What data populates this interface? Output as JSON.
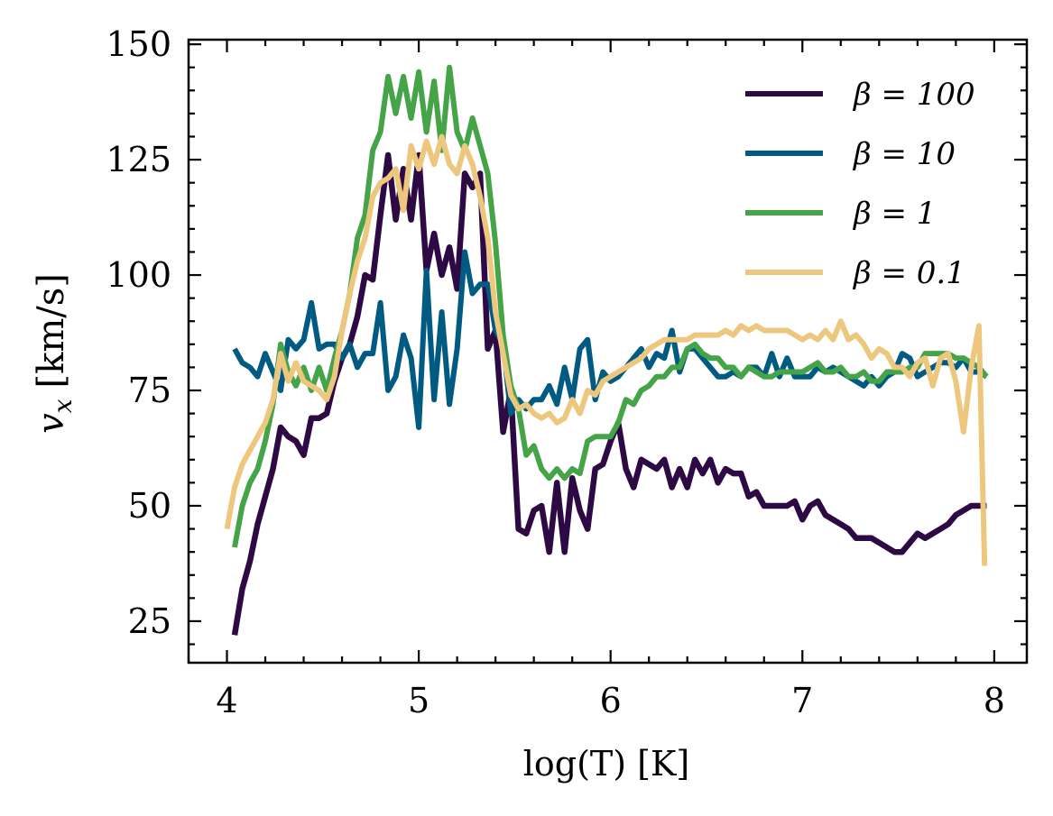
{
  "chart_data": {
    "type": "line",
    "title": "",
    "xlabel": "log(T) [K]",
    "ylabel_var": "v",
    "ylabel_sub": "x",
    "ylabel_unit": "[km/s]",
    "xlim": [
      3.8,
      8.17
    ],
    "ylim": [
      16,
      151
    ],
    "xticks": [
      4,
      5,
      6,
      7,
      8
    ],
    "yticks": [
      25,
      50,
      75,
      100,
      125,
      150
    ],
    "legend_position": "top-right",
    "series": [
      {
        "name": "β = 100",
        "color": "#2d0a44",
        "x": [
          4.04,
          4.08,
          4.12,
          4.16,
          4.2,
          4.24,
          4.28,
          4.32,
          4.36,
          4.4,
          4.44,
          4.48,
          4.52,
          4.56,
          4.6,
          4.64,
          4.68,
          4.72,
          4.76,
          4.8,
          4.84,
          4.88,
          4.92,
          4.96,
          5.0,
          5.04,
          5.08,
          5.12,
          5.16,
          5.2,
          5.24,
          5.28,
          5.32,
          5.36,
          5.4,
          5.44,
          5.48,
          5.52,
          5.56,
          5.6,
          5.64,
          5.68,
          5.72,
          5.76,
          5.8,
          5.84,
          5.88,
          5.92,
          5.96,
          6.0,
          6.04,
          6.08,
          6.12,
          6.16,
          6.2,
          6.24,
          6.28,
          6.32,
          6.36,
          6.4,
          6.44,
          6.48,
          6.52,
          6.56,
          6.6,
          6.64,
          6.68,
          6.72,
          6.76,
          6.8,
          6.84,
          6.88,
          6.92,
          6.96,
          7.0,
          7.04,
          7.08,
          7.12,
          7.16,
          7.2,
          7.24,
          7.28,
          7.32,
          7.36,
          7.4,
          7.44,
          7.48,
          7.52,
          7.56,
          7.6,
          7.64,
          7.68,
          7.72,
          7.76,
          7.8,
          7.84,
          7.88,
          7.92,
          7.96
        ],
        "y": [
          22,
          32,
          38,
          46,
          52,
          58,
          67,
          65,
          64,
          61,
          69,
          69,
          70,
          77,
          82,
          85,
          91,
          100,
          99,
          113,
          126,
          112,
          123,
          112,
          126,
          101,
          109,
          100,
          106,
          97,
          122,
          119,
          122,
          84,
          88,
          66,
          75,
          45,
          44,
          49,
          50,
          40,
          55,
          40,
          56,
          49,
          45,
          58,
          59,
          64,
          68,
          58,
          54,
          60,
          59,
          58,
          60,
          54,
          58,
          54,
          60,
          57,
          60,
          55,
          58,
          57,
          57,
          52,
          53,
          50,
          50,
          50,
          50,
          51,
          47,
          50,
          51,
          48,
          47,
          46,
          45,
          43,
          43,
          43,
          42,
          41,
          40,
          40,
          42,
          44,
          43,
          44,
          45,
          46,
          48,
          49,
          50,
          50,
          50
        ],
        "width": 6.5
      },
      {
        "name": "β = 10",
        "color": "#005a81",
        "x": [
          4.04,
          4.08,
          4.12,
          4.16,
          4.2,
          4.24,
          4.28,
          4.32,
          4.36,
          4.4,
          4.44,
          4.48,
          4.52,
          4.56,
          4.6,
          4.64,
          4.68,
          4.72,
          4.76,
          4.8,
          4.84,
          4.88,
          4.92,
          4.96,
          5.0,
          5.04,
          5.08,
          5.12,
          5.16,
          5.2,
          5.24,
          5.28,
          5.32,
          5.36,
          5.4,
          5.44,
          5.48,
          5.52,
          5.56,
          5.6,
          5.64,
          5.68,
          5.72,
          5.76,
          5.8,
          5.84,
          5.88,
          5.92,
          5.96,
          6.0,
          6.04,
          6.08,
          6.12,
          6.16,
          6.2,
          6.24,
          6.28,
          6.32,
          6.36,
          6.4,
          6.44,
          6.48,
          6.52,
          6.56,
          6.6,
          6.64,
          6.68,
          6.72,
          6.76,
          6.8,
          6.84,
          6.88,
          6.92,
          6.96,
          7.0,
          7.04,
          7.08,
          7.12,
          7.16,
          7.2,
          7.24,
          7.28,
          7.32,
          7.36,
          7.4,
          7.44,
          7.48,
          7.52,
          7.56,
          7.6,
          7.64,
          7.68,
          7.72,
          7.76,
          7.8,
          7.84,
          7.88,
          7.92,
          7.96
        ],
        "y": [
          84,
          81,
          80,
          78,
          83,
          79,
          75,
          86,
          84,
          86,
          94,
          84,
          85,
          85,
          82,
          85,
          80,
          83,
          83,
          94,
          75,
          78,
          87,
          82,
          67,
          101,
          73,
          92,
          72,
          84,
          105,
          96,
          98,
          98,
          88,
          85,
          70,
          73,
          71,
          73,
          73,
          76,
          72,
          80,
          73,
          84,
          86,
          73,
          79,
          77,
          78,
          80,
          82,
          84,
          80,
          83,
          82,
          88,
          79,
          84,
          84,
          82,
          80,
          78,
          78,
          79,
          78,
          80,
          80,
          78,
          83,
          78,
          82,
          78,
          78,
          78,
          80,
          79,
          80,
          79,
          78,
          77,
          76,
          78,
          76,
          78,
          79,
          83,
          82,
          78,
          79,
          80,
          81,
          81,
          80,
          82,
          79,
          79,
          78
        ],
        "width": 6
      },
      {
        "name": "β = 1",
        "color": "#45a348",
        "x": [
          4.04,
          4.08,
          4.12,
          4.16,
          4.2,
          4.24,
          4.28,
          4.32,
          4.36,
          4.4,
          4.44,
          4.48,
          4.52,
          4.56,
          4.6,
          4.64,
          4.68,
          4.72,
          4.76,
          4.8,
          4.84,
          4.88,
          4.92,
          4.96,
          5.0,
          5.04,
          5.08,
          5.12,
          5.16,
          5.2,
          5.24,
          5.28,
          5.32,
          5.36,
          5.4,
          5.44,
          5.48,
          5.52,
          5.56,
          5.6,
          5.64,
          5.68,
          5.72,
          5.76,
          5.8,
          5.84,
          5.88,
          5.92,
          5.96,
          6.0,
          6.04,
          6.08,
          6.12,
          6.16,
          6.2,
          6.24,
          6.28,
          6.32,
          6.36,
          6.4,
          6.44,
          6.48,
          6.52,
          6.56,
          6.6,
          6.64,
          6.68,
          6.72,
          6.76,
          6.8,
          6.84,
          6.88,
          6.92,
          6.96,
          7.0,
          7.04,
          7.08,
          7.12,
          7.16,
          7.2,
          7.24,
          7.28,
          7.32,
          7.36,
          7.4,
          7.44,
          7.48,
          7.52,
          7.56,
          7.6,
          7.64,
          7.68,
          7.72,
          7.76,
          7.8,
          7.84,
          7.88,
          7.92,
          7.96
        ],
        "y": [
          41,
          50,
          55,
          58,
          64,
          72,
          85,
          79,
          76,
          80,
          75,
          80,
          75,
          82,
          88,
          96,
          108,
          113,
          127,
          131,
          143,
          135,
          143,
          134,
          144,
          131,
          142,
          127,
          145,
          131,
          127,
          134,
          128,
          122,
          107,
          87,
          76,
          71,
          61,
          63,
          58,
          56,
          58,
          56,
          58,
          57,
          64,
          65,
          65,
          65,
          68,
          73,
          72,
          75,
          76,
          78,
          78,
          80,
          80,
          84,
          85,
          83,
          82,
          82,
          80,
          80,
          78,
          80,
          79,
          78,
          78,
          79,
          79,
          79,
          79,
          80,
          81,
          79,
          79,
          80,
          78,
          78,
          79,
          77,
          77,
          79,
          79,
          79,
          80,
          80,
          83,
          83,
          83,
          83,
          82,
          82,
          81,
          80,
          78
        ],
        "width": 6
      },
      {
        "name": "β = 0.1",
        "color": "#eec77f",
        "x": [
          4.0,
          4.04,
          4.08,
          4.12,
          4.16,
          4.2,
          4.24,
          4.28,
          4.32,
          4.36,
          4.4,
          4.44,
          4.48,
          4.52,
          4.56,
          4.6,
          4.64,
          4.68,
          4.72,
          4.76,
          4.8,
          4.84,
          4.88,
          4.92,
          4.96,
          5.0,
          5.04,
          5.08,
          5.12,
          5.16,
          5.2,
          5.24,
          5.28,
          5.32,
          5.36,
          5.4,
          5.44,
          5.48,
          5.52,
          5.56,
          5.6,
          5.64,
          5.68,
          5.72,
          5.76,
          5.8,
          5.84,
          5.88,
          5.92,
          5.96,
          6.0,
          6.04,
          6.08,
          6.12,
          6.16,
          6.2,
          6.24,
          6.28,
          6.32,
          6.36,
          6.4,
          6.44,
          6.48,
          6.52,
          6.56,
          6.6,
          6.64,
          6.68,
          6.72,
          6.76,
          6.8,
          6.84,
          6.88,
          6.92,
          6.96,
          7.0,
          7.04,
          7.08,
          7.12,
          7.16,
          7.2,
          7.24,
          7.28,
          7.32,
          7.36,
          7.4,
          7.44,
          7.48,
          7.52,
          7.56,
          7.6,
          7.64,
          7.68,
          7.72,
          7.76,
          7.8,
          7.84,
          7.88,
          7.92,
          7.95
        ],
        "y": [
          45,
          54,
          59,
          62,
          65,
          68,
          73,
          83,
          77,
          81,
          77,
          76,
          75,
          73,
          78,
          88,
          96,
          103,
          108,
          117,
          120,
          121,
          123,
          114,
          128,
          123,
          129,
          124,
          130,
          124,
          122,
          128,
          124,
          117,
          108,
          92,
          83,
          74,
          71,
          72,
          70,
          69,
          70,
          68,
          69,
          73,
          70,
          75,
          74,
          77,
          78,
          79,
          80,
          81,
          82,
          84,
          85,
          86,
          86,
          86,
          86,
          87,
          87,
          87,
          87,
          88,
          87,
          89,
          88,
          89,
          88,
          88,
          88,
          88,
          87,
          86,
          87,
          86,
          88,
          86,
          90,
          86,
          87,
          85,
          82,
          84,
          83,
          80,
          80,
          78,
          81,
          82,
          76,
          82,
          83,
          77,
          66,
          80,
          89,
          37
        ],
        "width": 6
      }
    ]
  }
}
